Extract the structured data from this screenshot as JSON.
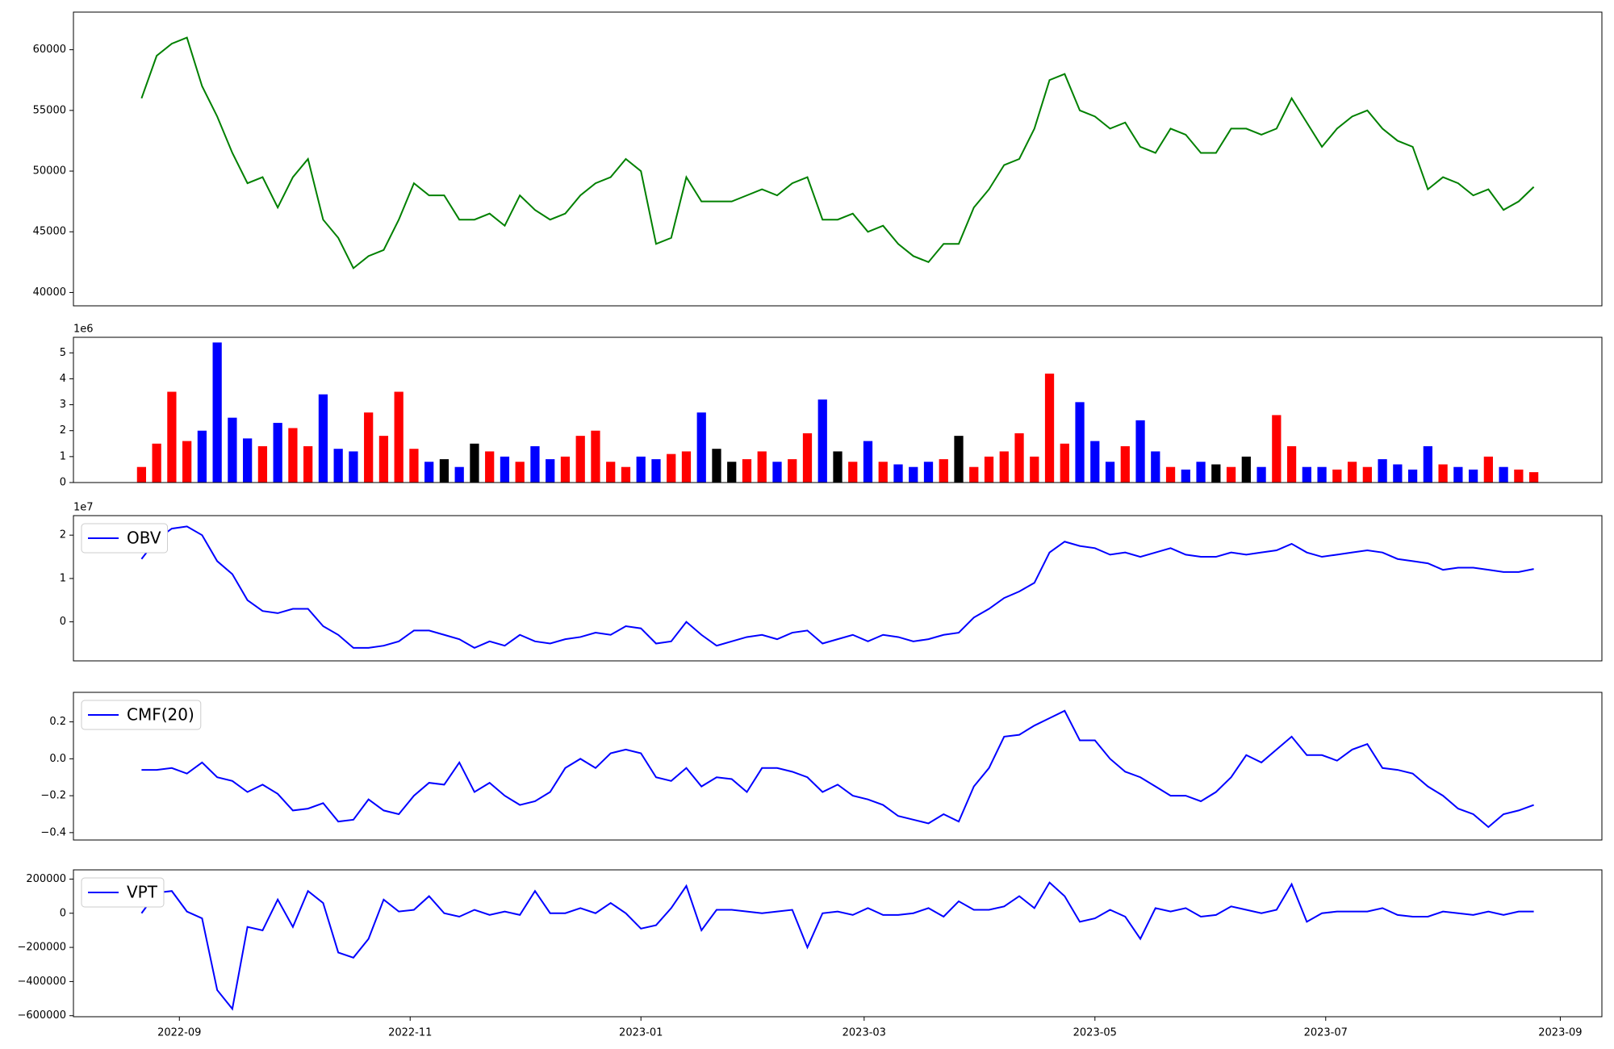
{
  "chart_data": [
    {
      "type": "line",
      "xlim": [
        19208,
        19612
      ],
      "ylim": [
        38900,
        63100
      ],
      "yticks": [
        40000,
        45000,
        50000,
        55000,
        60000
      ],
      "x": [
        19226,
        19230,
        19234,
        19238,
        19242,
        19246,
        19250,
        19254,
        19258,
        19262,
        19266,
        19270,
        19274,
        19278,
        19282,
        19286,
        19290,
        19294,
        19298,
        19302,
        19306,
        19310,
        19314,
        19318,
        19322,
        19326,
        19330,
        19334,
        19338,
        19342,
        19346,
        19350,
        19354,
        19358,
        19362,
        19366,
        19370,
        19374,
        19378,
        19382,
        19386,
        19390,
        19394,
        19398,
        19402,
        19406,
        19410,
        19414,
        19418,
        19422,
        19426,
        19430,
        19434,
        19438,
        19442,
        19446,
        19450,
        19454,
        19458,
        19462,
        19466,
        19470,
        19474,
        19478,
        19482,
        19486,
        19490,
        19494,
        19498,
        19502,
        19506,
        19510,
        19514,
        19518,
        19522,
        19526,
        19530,
        19534,
        19538,
        19542,
        19546,
        19550,
        19554,
        19558,
        19562,
        19566,
        19570,
        19574,
        19578,
        19582,
        19586,
        19590,
        19594
      ],
      "series": [
        {
          "color": "green",
          "values": [
            56000,
            59500,
            60500,
            61000,
            57000,
            54500,
            51500,
            49000,
            49500,
            47000,
            49500,
            51000,
            46000,
            44500,
            42000,
            43000,
            43500,
            46000,
            49000,
            48000,
            48000,
            46000,
            46000,
            46500,
            45500,
            48000,
            46800,
            46000,
            46500,
            48000,
            49000,
            49500,
            51000,
            50000,
            44000,
            44500,
            49500,
            47500,
            47500,
            47500,
            48000,
            48500,
            48000,
            49000,
            49500,
            46000,
            46000,
            46500,
            45000,
            45500,
            44000,
            43000,
            42500,
            44000,
            44000,
            47000,
            48500,
            50500,
            51000,
            53500,
            57500,
            58000,
            55000,
            54500,
            53500,
            54000,
            52000,
            51500,
            53500,
            53000,
            51500,
            51500,
            53500,
            53500,
            53000,
            53500,
            56000,
            54000,
            52000,
            53500,
            54500,
            55000,
            53500,
            52500,
            52000,
            48500,
            49500,
            49000,
            48000,
            48500,
            46800,
            47500,
            48700
          ]
        }
      ]
    },
    {
      "type": "bar",
      "xlim": [
        19208,
        19612
      ],
      "ylim": [
        0,
        5.6
      ],
      "yticks": [
        0,
        1,
        2,
        3,
        4,
        5
      ],
      "y_offset_label": "1e6",
      "x": [
        19226,
        19230,
        19234,
        19238,
        19242,
        19246,
        19250,
        19254,
        19258,
        19262,
        19266,
        19270,
        19274,
        19278,
        19282,
        19286,
        19290,
        19294,
        19298,
        19302,
        19306,
        19310,
        19314,
        19318,
        19322,
        19326,
        19330,
        19334,
        19338,
        19342,
        19346,
        19350,
        19354,
        19358,
        19362,
        19366,
        19370,
        19374,
        19378,
        19382,
        19386,
        19390,
        19394,
        19398,
        19402,
        19406,
        19410,
        19414,
        19418,
        19422,
        19426,
        19430,
        19434,
        19438,
        19442,
        19446,
        19450,
        19454,
        19458,
        19462,
        19466,
        19470,
        19474,
        19478,
        19482,
        19486,
        19490,
        19494,
        19498,
        19502,
        19506,
        19510,
        19514,
        19518,
        19522,
        19526,
        19530,
        19534,
        19538,
        19542,
        19546,
        19550,
        19554,
        19558,
        19562,
        19566,
        19570,
        19574,
        19578,
        19582,
        19586,
        19590,
        19594
      ],
      "values": [
        0.6,
        1.5,
        3.5,
        1.6,
        2.0,
        5.4,
        2.5,
        1.7,
        1.4,
        2.3,
        2.1,
        1.4,
        3.4,
        1.3,
        1.2,
        2.7,
        1.8,
        3.5,
        1.3,
        0.8,
        0.9,
        0.6,
        1.5,
        1.2,
        1.0,
        0.8,
        1.4,
        0.9,
        1.0,
        1.8,
        2.0,
        0.8,
        0.6,
        1.0,
        0.9,
        1.1,
        1.2,
        2.7,
        1.3,
        0.8,
        0.9,
        1.2,
        0.8,
        0.9,
        1.9,
        3.2,
        1.2,
        0.8,
        1.6,
        0.8,
        0.7,
        0.6,
        0.8,
        0.9,
        1.8,
        0.6,
        1.0,
        1.2,
        1.9,
        1.0,
        4.2,
        1.5,
        3.1,
        1.6,
        0.8,
        1.4,
        2.4,
        1.2,
        0.6,
        0.5,
        0.8,
        0.7,
        0.6,
        1.0,
        0.6,
        2.6,
        1.4,
        0.6,
        0.6,
        0.5,
        0.8,
        0.6,
        0.9,
        0.7,
        0.5,
        1.4,
        0.7,
        0.6,
        0.5,
        1.0,
        0.6,
        0.5,
        0.4
      ],
      "colors": [
        "red",
        "red",
        "red",
        "red",
        "blue",
        "blue",
        "blue",
        "blue",
        "red",
        "blue",
        "red",
        "red",
        "blue",
        "blue",
        "blue",
        "red",
        "red",
        "red",
        "red",
        "blue",
        "black",
        "blue",
        "black",
        "red",
        "blue",
        "red",
        "blue",
        "blue",
        "red",
        "red",
        "red",
        "red",
        "red",
        "blue",
        "blue",
        "red",
        "red",
        "blue",
        "black",
        "black",
        "red",
        "red",
        "blue",
        "red",
        "red",
        "blue",
        "black",
        "red",
        "blue",
        "red",
        "blue",
        "blue",
        "blue",
        "red",
        "black",
        "red",
        "red",
        "red",
        "red",
        "red",
        "red",
        "red",
        "blue",
        "blue",
        "blue",
        "red",
        "blue",
        "blue",
        "red",
        "blue",
        "blue",
        "black",
        "red",
        "black",
        "blue",
        "red",
        "red",
        "blue",
        "blue",
        "red",
        "red",
        "red",
        "blue",
        "blue",
        "blue",
        "blue",
        "red",
        "blue",
        "blue",
        "red",
        "blue",
        "red",
        "red"
      ]
    },
    {
      "type": "line",
      "xlim": [
        19208,
        19612
      ],
      "ylim": [
        -0.9,
        2.45
      ],
      "yticks": [
        0,
        1,
        2
      ],
      "y_offset_label": "1e7",
      "legend": "upper left",
      "x": [
        19226,
        19230,
        19234,
        19238,
        19242,
        19246,
        19250,
        19254,
        19258,
        19262,
        19266,
        19270,
        19274,
        19278,
        19282,
        19286,
        19290,
        19294,
        19298,
        19302,
        19306,
        19310,
        19314,
        19318,
        19322,
        19326,
        19330,
        19334,
        19338,
        19342,
        19346,
        19350,
        19354,
        19358,
        19362,
        19366,
        19370,
        19374,
        19378,
        19382,
        19386,
        19390,
        19394,
        19398,
        19402,
        19406,
        19410,
        19414,
        19418,
        19422,
        19426,
        19430,
        19434,
        19438,
        19442,
        19446,
        19450,
        19454,
        19458,
        19462,
        19466,
        19470,
        19474,
        19478,
        19482,
        19486,
        19490,
        19494,
        19498,
        19502,
        19506,
        19510,
        19514,
        19518,
        19522,
        19526,
        19530,
        19534,
        19538,
        19542,
        19546,
        19550,
        19554,
        19558,
        19562,
        19566,
        19570,
        19574,
        19578,
        19582,
        19586,
        19590,
        19594
      ],
      "series": [
        {
          "name": "OBV",
          "color": "blue",
          "values": [
            1.45,
            1.9,
            2.15,
            2.2,
            2.0,
            1.4,
            1.1,
            0.5,
            0.25,
            0.2,
            0.3,
            0.3,
            -0.1,
            -0.3,
            -0.6,
            -0.6,
            -0.55,
            -0.45,
            -0.2,
            -0.2,
            -0.3,
            -0.4,
            -0.6,
            -0.45,
            -0.55,
            -0.3,
            -0.45,
            -0.5,
            -0.4,
            -0.35,
            -0.25,
            -0.3,
            -0.1,
            -0.15,
            -0.5,
            -0.45,
            0.0,
            -0.3,
            -0.55,
            -0.45,
            -0.35,
            -0.3,
            -0.4,
            -0.25,
            -0.2,
            -0.5,
            -0.4,
            -0.3,
            -0.45,
            -0.3,
            -0.35,
            -0.45,
            -0.4,
            -0.3,
            -0.25,
            0.1,
            0.3,
            0.55,
            0.7,
            0.9,
            1.6,
            1.85,
            1.75,
            1.7,
            1.55,
            1.6,
            1.5,
            1.6,
            1.7,
            1.55,
            1.5,
            1.5,
            1.6,
            1.55,
            1.6,
            1.65,
            1.8,
            1.6,
            1.5,
            1.55,
            1.6,
            1.65,
            1.6,
            1.45,
            1.4,
            1.35,
            1.2,
            1.25,
            1.25,
            1.2,
            1.15,
            1.15,
            1.22
          ]
        }
      ]
    },
    {
      "type": "line",
      "xlim": [
        19208,
        19612
      ],
      "ylim": [
        -0.44,
        0.36
      ],
      "yticks": [
        {
          "value": -0.4,
          "label": "−0.4"
        },
        {
          "value": -0.2,
          "label": "−0.2"
        },
        {
          "value": 0,
          "label": "0.0"
        },
        0.2
      ],
      "legend": "upper left",
      "x": [
        19226,
        19230,
        19234,
        19238,
        19242,
        19246,
        19250,
        19254,
        19258,
        19262,
        19266,
        19270,
        19274,
        19278,
        19282,
        19286,
        19290,
        19294,
        19298,
        19302,
        19306,
        19310,
        19314,
        19318,
        19322,
        19326,
        19330,
        19334,
        19338,
        19342,
        19346,
        19350,
        19354,
        19358,
        19362,
        19366,
        19370,
        19374,
        19378,
        19382,
        19386,
        19390,
        19394,
        19398,
        19402,
        19406,
        19410,
        19414,
        19418,
        19422,
        19426,
        19430,
        19434,
        19438,
        19442,
        19446,
        19450,
        19454,
        19458,
        19462,
        19466,
        19470,
        19474,
        19478,
        19482,
        19486,
        19490,
        19494,
        19498,
        19502,
        19506,
        19510,
        19514,
        19518,
        19522,
        19526,
        19530,
        19534,
        19538,
        19542,
        19546,
        19550,
        19554,
        19558,
        19562,
        19566,
        19570,
        19574,
        19578,
        19582,
        19586,
        19590,
        19594
      ],
      "series": [
        {
          "name": "CMF(20)",
          "color": "blue",
          "values": [
            -0.06,
            -0.06,
            -0.05,
            -0.08,
            -0.02,
            -0.1,
            -0.12,
            -0.18,
            -0.14,
            -0.19,
            -0.28,
            -0.27,
            -0.24,
            -0.34,
            -0.33,
            -0.22,
            -0.28,
            -0.3,
            -0.2,
            -0.13,
            -0.14,
            -0.02,
            -0.18,
            -0.13,
            -0.2,
            -0.25,
            -0.23,
            -0.18,
            -0.05,
            0.0,
            -0.05,
            0.03,
            0.05,
            0.03,
            -0.1,
            -0.12,
            -0.05,
            -0.15,
            -0.1,
            -0.11,
            -0.18,
            -0.05,
            -0.05,
            -0.07,
            -0.1,
            -0.18,
            -0.14,
            -0.2,
            -0.22,
            -0.25,
            -0.31,
            -0.33,
            -0.35,
            -0.3,
            -0.34,
            -0.15,
            -0.05,
            0.12,
            0.13,
            0.18,
            0.22,
            0.26,
            0.1,
            0.1,
            0.0,
            -0.07,
            -0.1,
            -0.15,
            -0.2,
            -0.2,
            -0.23,
            -0.18,
            -0.1,
            0.02,
            -0.02,
            0.05,
            0.12,
            0.02,
            0.02,
            -0.01,
            0.05,
            0.08,
            -0.05,
            -0.06,
            -0.08,
            -0.15,
            -0.2,
            -0.27,
            -0.3,
            -0.37,
            -0.3,
            -0.28,
            -0.25
          ]
        }
      ]
    },
    {
      "type": "line",
      "xlim": [
        19208,
        19612
      ],
      "ylim": [
        -606000,
        254000
      ],
      "yticks": [
        {
          "value": -600000,
          "label": "−600000"
        },
        {
          "value": -400000,
          "label": "−400000"
        },
        {
          "value": -200000,
          "label": "−200000"
        },
        0,
        200000
      ],
      "legend": "upper left",
      "xticks": [
        {
          "value": 19236,
          "label": "2022-09"
        },
        {
          "value": 19297,
          "label": "2022-11"
        },
        {
          "value": 19358,
          "label": "2023-01"
        },
        {
          "value": 19417,
          "label": "2023-03"
        },
        {
          "value": 19478,
          "label": "2023-05"
        },
        {
          "value": 19539,
          "label": "2023-07"
        },
        {
          "value": 19601,
          "label": "2023-09"
        }
      ],
      "x": [
        19226,
        19230,
        19234,
        19238,
        19242,
        19246,
        19250,
        19254,
        19258,
        19262,
        19266,
        19270,
        19274,
        19278,
        19282,
        19286,
        19290,
        19294,
        19298,
        19302,
        19306,
        19310,
        19314,
        19318,
        19322,
        19326,
        19330,
        19334,
        19338,
        19342,
        19346,
        19350,
        19354,
        19358,
        19362,
        19366,
        19370,
        19374,
        19378,
        19382,
        19386,
        19390,
        19394,
        19398,
        19402,
        19406,
        19410,
        19414,
        19418,
        19422,
        19426,
        19430,
        19434,
        19438,
        19442,
        19446,
        19450,
        19454,
        19458,
        19462,
        19466,
        19470,
        19474,
        19478,
        19482,
        19486,
        19490,
        19494,
        19498,
        19502,
        19506,
        19510,
        19514,
        19518,
        19522,
        19526,
        19530,
        19534,
        19538,
        19542,
        19546,
        19550,
        19554,
        19558,
        19562,
        19566,
        19570,
        19574,
        19578,
        19582,
        19586,
        19590,
        19594
      ],
      "series": [
        {
          "name": "VPT",
          "color": "blue",
          "values": [
            0,
            120000,
            130000,
            10000,
            -30000,
            -450000,
            -560000,
            -80000,
            -100000,
            80000,
            -80000,
            130000,
            60000,
            -230000,
            -260000,
            -150000,
            80000,
            10000,
            20000,
            100000,
            0,
            -20000,
            20000,
            -10000,
            10000,
            -10000,
            130000,
            0,
            0,
            30000,
            0,
            60000,
            0,
            -90000,
            -70000,
            30000,
            160000,
            -100000,
            20000,
            20000,
            10000,
            0,
            10000,
            20000,
            -200000,
            0,
            10000,
            -10000,
            30000,
            -10000,
            -10000,
            0,
            30000,
            -20000,
            70000,
            20000,
            20000,
            40000,
            100000,
            30000,
            180000,
            100000,
            -50000,
            -30000,
            20000,
            -20000,
            -150000,
            30000,
            10000,
            30000,
            -20000,
            -10000,
            40000,
            20000,
            0,
            20000,
            170000,
            -50000,
            0,
            10000,
            10000,
            10000,
            30000,
            -10000,
            -20000,
            -20000,
            10000,
            0,
            -10000,
            10000,
            -10000,
            10000,
            10000
          ]
        }
      ]
    }
  ]
}
